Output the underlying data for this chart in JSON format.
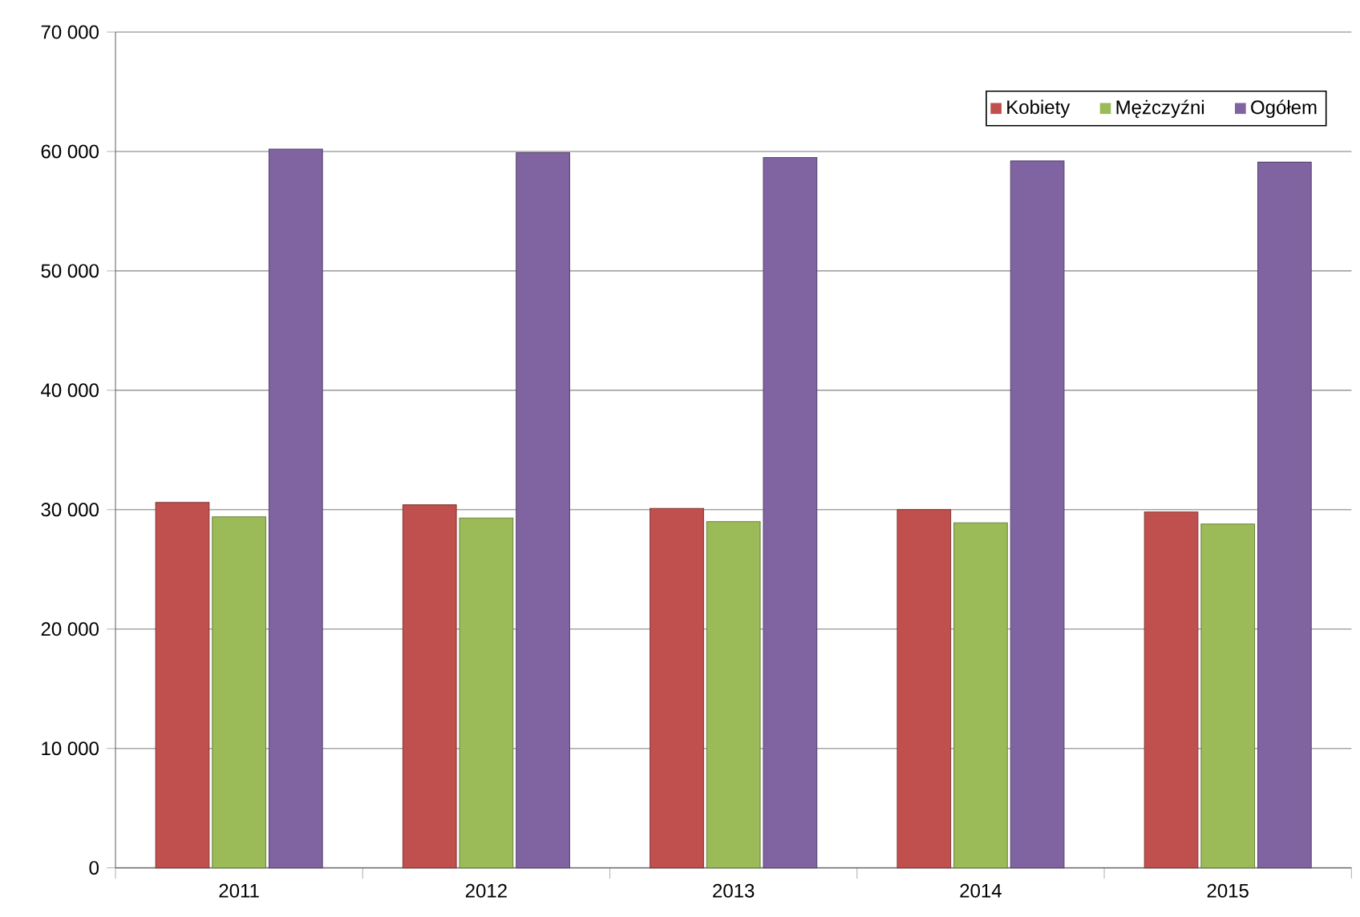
{
  "chart_data": {
    "type": "bar",
    "categories": [
      "2011",
      "2012",
      "2013",
      "2014",
      "2015"
    ],
    "series": [
      {
        "name": "Kobiety",
        "color": "#c0504d",
        "values": [
          30600,
          30400,
          30100,
          30000,
          29800
        ]
      },
      {
        "name": "Mężczyźni",
        "color": "#9bbb59",
        "values": [
          29400,
          29300,
          29000,
          28900,
          28800
        ]
      },
      {
        "name": "Ogółem",
        "color": "#8064a2",
        "values": [
          60200,
          59900,
          59500,
          59200,
          59100
        ]
      }
    ],
    "ylim": [
      0,
      70000
    ],
    "yticks": [
      {
        "value": 0,
        "label": "0"
      },
      {
        "value": 10000,
        "label": "10 000"
      },
      {
        "value": 20000,
        "label": "20 000"
      },
      {
        "value": 30000,
        "label": "30 000"
      },
      {
        "value": 40000,
        "label": "40 000"
      },
      {
        "value": 50000,
        "label": "50 000"
      },
      {
        "value": 60000,
        "label": "60 000"
      },
      {
        "value": 70000,
        "label": "70 000"
      }
    ],
    "grid": "y",
    "legend": "top right"
  }
}
